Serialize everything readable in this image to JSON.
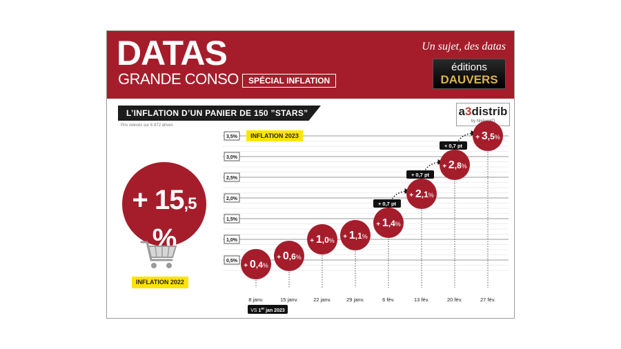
{
  "header": {
    "title": "DATAS",
    "subtitle": "GRANDE CONSO",
    "special_badge": "SPÉCIAL INFLATION",
    "tagline": "Un sujet, des datas",
    "publisher_logo_top": "éditions",
    "publisher_logo_bottom": "DAUVERS"
  },
  "section": {
    "title": "L’INFLATION D’UN PANIER DE 150 ”STARS”",
    "source": "Prix relevés sur 6 872 drives"
  },
  "partner": {
    "name_a": "a",
    "name_b": "3",
    "name_c": "distrib",
    "by": "by NielsenIQ"
  },
  "highlight": {
    "prefix": "+ ",
    "integer": "15",
    "decimal": ",5",
    "suffix": " %",
    "label": "INFLATION 2022",
    "value": 15.5,
    "icon": "shopping-cart-icon"
  },
  "colors": {
    "brand_red": "#a51d2b",
    "dark": "#1c1c1c",
    "highlight_yellow": "#ffe400"
  },
  "chart_data": {
    "type": "scatter",
    "title": "INFLATION 2023",
    "xlabel": "",
    "ylabel": "",
    "ylim": [
      0,
      3.5
    ],
    "grid": true,
    "y_ticks": [
      {
        "value": 0.5,
        "label": "0,5%"
      },
      {
        "value": 1.0,
        "label": "1,0%"
      },
      {
        "value": 1.5,
        "label": "1,5%"
      },
      {
        "value": 2.0,
        "label": "2,0%"
      },
      {
        "value": 2.5,
        "label": "2,5%"
      },
      {
        "value": 3.0,
        "label": "3,0%"
      },
      {
        "value": 3.5,
        "label": "3,5%"
      }
    ],
    "categories": [
      "8 janv.",
      "15 janv.",
      "22 janv.",
      "29 janv.",
      "6 fév.",
      "13 fév.",
      "20 fév.",
      "27 fév."
    ],
    "values": [
      0.4,
      0.6,
      1.0,
      1.1,
      1.4,
      2.1,
      2.8,
      3.5
    ],
    "data_labels": [
      {
        "prefix": "+ ",
        "integer": "0",
        "decimal": ",4",
        "unit": "%"
      },
      {
        "prefix": "+ ",
        "integer": "0",
        "decimal": ",6",
        "unit": "%"
      },
      {
        "prefix": "+ ",
        "integer": "1",
        "decimal": ",0",
        "unit": "%"
      },
      {
        "prefix": "+ ",
        "integer": "1",
        "decimal": ",1",
        "unit": "%"
      },
      {
        "prefix": "+ ",
        "integer": "1",
        "decimal": ",4",
        "unit": "%"
      },
      {
        "prefix": "+ ",
        "integer": "2",
        "decimal": ",1",
        "unit": "%"
      },
      {
        "prefix": "+ ",
        "integer": "2",
        "decimal": ",8",
        "unit": "%"
      },
      {
        "prefix": "+ ",
        "integer": "3",
        "decimal": ",5",
        "unit": "%"
      }
    ],
    "annotations": [
      {
        "from": 4,
        "to": 5,
        "text": "+ 0,7 pt"
      },
      {
        "from": 5,
        "to": 6,
        "text": "+ 0,7 pt"
      },
      {
        "from": 6,
        "to": 7,
        "text": "+ 0,7 pt"
      }
    ],
    "baseline_note": {
      "prefix": "VS ",
      "main": "1",
      "sup": "er",
      "rest": " jan 2023"
    }
  }
}
